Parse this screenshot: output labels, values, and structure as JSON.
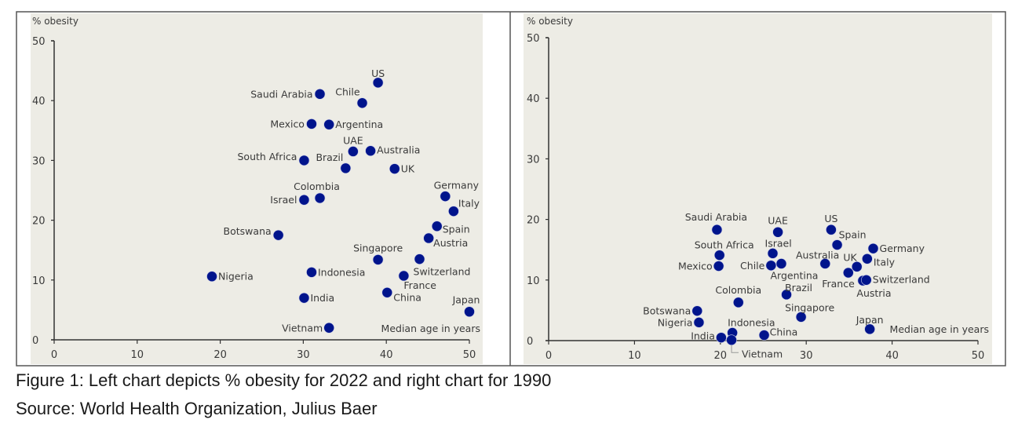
{
  "colors": {
    "panel_background": "#edece5",
    "point": "#00148c",
    "axis": "#333333",
    "frame": "#555555"
  },
  "caption": {
    "line1": "Figure 1: Left chart depicts % obesity for 2022 and right chart for 1990",
    "line2": "Source: World Health Organization, Julius Baer"
  },
  "chart_data": [
    {
      "type": "scatter",
      "title": "% obesity 2022",
      "ylabel": "% obesity",
      "xlabel": "Median age in years",
      "xlim": [
        0,
        50
      ],
      "ylim": [
        0,
        50
      ],
      "xticks": [
        0,
        10,
        20,
        30,
        40,
        50
      ],
      "yticks": [
        0,
        10,
        20,
        30,
        40,
        50
      ],
      "grid": false,
      "points": [
        {
          "label": "US",
          "x": 39.0,
          "y": 43.0
        },
        {
          "label": "Saudi Arabia",
          "x": 32.0,
          "y": 41.1
        },
        {
          "label": "Chile",
          "x": 37.1,
          "y": 39.6
        },
        {
          "label": "Mexico",
          "x": 31.0,
          "y": 36.1
        },
        {
          "label": "Argentina",
          "x": 33.1,
          "y": 36.0
        },
        {
          "label": "UAE",
          "x": 36.0,
          "y": 31.5
        },
        {
          "label": "Australia",
          "x": 38.1,
          "y": 31.6
        },
        {
          "label": "South Africa",
          "x": 30.1,
          "y": 30.0
        },
        {
          "label": "Brazil",
          "x": 35.1,
          "y": 28.7
        },
        {
          "label": "UK",
          "x": 41.0,
          "y": 28.6
        },
        {
          "label": "Colombia",
          "x": 32.0,
          "y": 23.7
        },
        {
          "label": "Israel",
          "x": 30.1,
          "y": 23.4
        },
        {
          "label": "Germany",
          "x": 47.1,
          "y": 24.0
        },
        {
          "label": "Italy",
          "x": 48.1,
          "y": 21.5
        },
        {
          "label": "Spain",
          "x": 46.1,
          "y": 19.0
        },
        {
          "label": "Botswana",
          "x": 27.0,
          "y": 17.5
        },
        {
          "label": "Austria",
          "x": 45.1,
          "y": 17.0
        },
        {
          "label": "Singapore",
          "x": 39.0,
          "y": 13.4
        },
        {
          "label": "Switzerland",
          "x": 44.0,
          "y": 13.5
        },
        {
          "label": "Nigeria",
          "x": 19.0,
          "y": 10.6
        },
        {
          "label": "Indonesia",
          "x": 31.0,
          "y": 11.3
        },
        {
          "label": "France",
          "x": 42.1,
          "y": 10.7
        },
        {
          "label": "India",
          "x": 30.1,
          "y": 7.0
        },
        {
          "label": "China",
          "x": 40.1,
          "y": 7.9
        },
        {
          "label": "Japan",
          "x": 50.0,
          "y": 4.7
        },
        {
          "label": "Vietnam",
          "x": 33.1,
          "y": 2.0
        }
      ]
    },
    {
      "type": "scatter",
      "title": "% obesity 1990",
      "ylabel": "% obesity",
      "xlabel": "Median age in years",
      "xlim": [
        0,
        50
      ],
      "ylim": [
        0,
        50
      ],
      "xticks": [
        0,
        10,
        20,
        30,
        40,
        50
      ],
      "yticks": [
        0,
        10,
        20,
        30,
        40,
        50
      ],
      "grid": false,
      "points": [
        {
          "label": "Saudi Arabia",
          "x": 19.6,
          "y": 18.3
        },
        {
          "label": "UAE",
          "x": 26.7,
          "y": 17.9
        },
        {
          "label": "US",
          "x": 32.9,
          "y": 18.3
        },
        {
          "label": "Spain",
          "x": 33.6,
          "y": 15.8
        },
        {
          "label": "South Africa",
          "x": 19.9,
          "y": 14.1
        },
        {
          "label": "Israel",
          "x": 26.1,
          "y": 14.4
        },
        {
          "label": "Australia",
          "x": 32.2,
          "y": 12.7
        },
        {
          "label": "Germany",
          "x": 37.8,
          "y": 15.2
        },
        {
          "label": "Italy",
          "x": 37.1,
          "y": 13.5
        },
        {
          "label": "UK",
          "x": 35.9,
          "y": 12.2
        },
        {
          "label": "Mexico",
          "x": 19.8,
          "y": 12.3
        },
        {
          "label": "Chile",
          "x": 25.9,
          "y": 12.4
        },
        {
          "label": "Argentina",
          "x": 27.1,
          "y": 12.7
        },
        {
          "label": "France",
          "x": 34.9,
          "y": 11.2
        },
        {
          "label": "Austria",
          "x": 36.6,
          "y": 9.9
        },
        {
          "label": "Switzerland",
          "x": 37.0,
          "y": 10.0
        },
        {
          "label": "Brazil",
          "x": 27.7,
          "y": 7.6
        },
        {
          "label": "Colombia",
          "x": 22.1,
          "y": 6.3
        },
        {
          "label": "Singapore",
          "x": 29.4,
          "y": 3.9
        },
        {
          "label": "Botswana",
          "x": 17.3,
          "y": 4.9
        },
        {
          "label": "Nigeria",
          "x": 17.5,
          "y": 3.0
        },
        {
          "label": "Indonesia",
          "x": 21.4,
          "y": 1.3
        },
        {
          "label": "India",
          "x": 20.1,
          "y": 0.5
        },
        {
          "label": "Vietnam",
          "x": 21.3,
          "y": 0.1
        },
        {
          "label": "China",
          "x": 25.1,
          "y": 0.9
        },
        {
          "label": "Japan",
          "x": 37.4,
          "y": 1.9
        }
      ]
    }
  ]
}
